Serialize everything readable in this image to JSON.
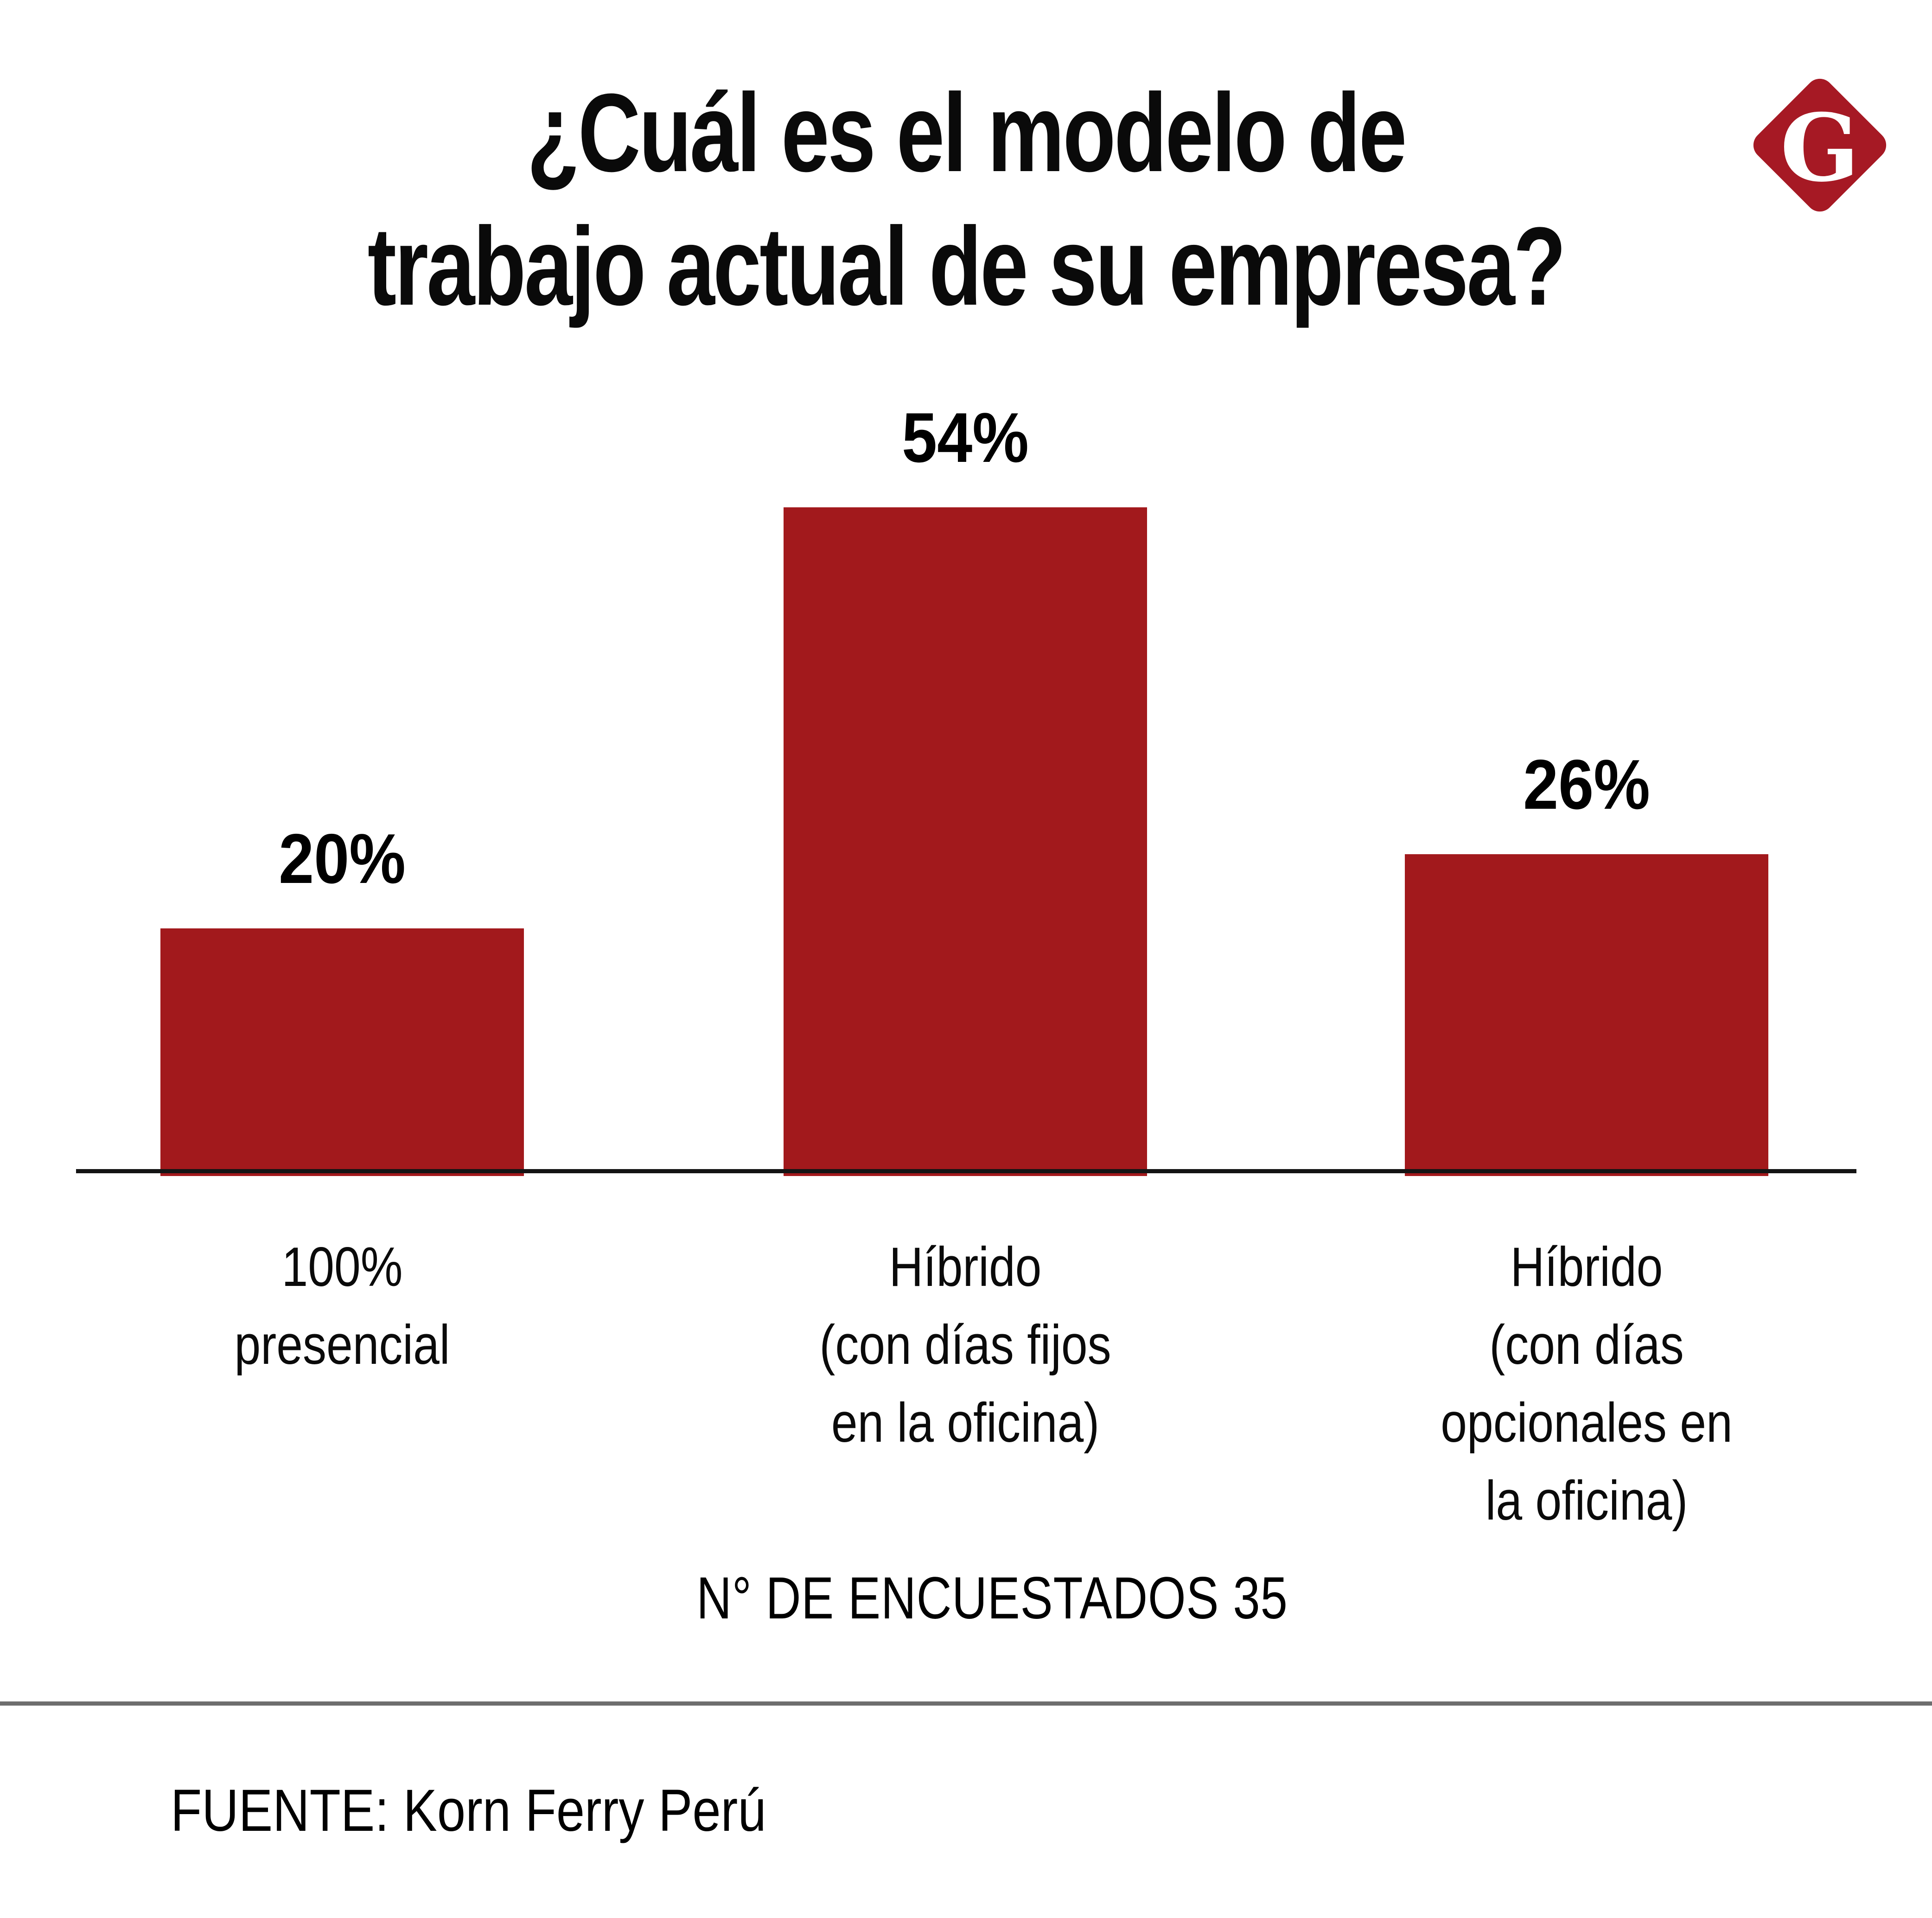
{
  "page": {
    "background": "#FFFFFF"
  },
  "title": {
    "line1": "¿Cuál es el modelo de",
    "line2": "trabajo actual de su empresa?"
  },
  "logo": {
    "letter": "G",
    "diamond_color": "#A61924",
    "letter_color": "#FFFFFF"
  },
  "chart_data": {
    "type": "bar",
    "title": "¿Cuál es el modelo de trabajo actual de su empresa?",
    "categories": [
      "100% presencial",
      "Híbrido (con días fijos en la oficina)",
      "Híbrido (con días opcionales en la oficina)"
    ],
    "values": [
      20,
      54,
      26
    ],
    "value_labels": [
      "20%",
      "54%",
      "26%"
    ],
    "xlabel": "",
    "ylabel": "",
    "ylim": [
      0,
      60
    ],
    "bar_color": "#A2191C",
    "axis_color": "#141414",
    "grid": false,
    "legend": false
  },
  "category_lines": [
    [
      "100%",
      "presencial"
    ],
    [
      "Híbrido",
      "(con días fijos",
      "en la oficina)"
    ],
    [
      "Híbrido",
      "(con días",
      "opcionales en",
      "la oficina)"
    ]
  ],
  "footer": {
    "respondents_note": "N° DE ENCUESTADOS 35",
    "source": "FUENTE: Korn Ferry Perú",
    "divider_color": "#6E6E6E"
  }
}
